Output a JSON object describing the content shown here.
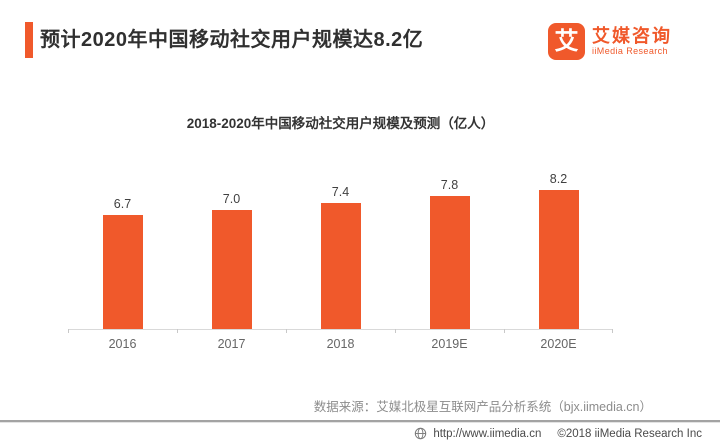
{
  "page": {
    "title": "预计2020年中国移动社交用户规模达8.2亿"
  },
  "logo": {
    "icon_char": "艾",
    "name_zh": "艾媒咨询",
    "name_en": "iiMedia Research"
  },
  "chart_data": {
    "type": "bar",
    "title": "2018-2020年中国移动社交用户规模及预测（亿人）",
    "categories": [
      "2016",
      "2017",
      "2018",
      "2019E",
      "2020E"
    ],
    "values": [
      6.7,
      7.0,
      7.4,
      7.8,
      8.2
    ],
    "value_labels": [
      "6.7",
      "7.0",
      "7.4",
      "7.8",
      "8.2"
    ],
    "xlabel": "",
    "ylabel": "",
    "ylim": [
      0,
      10
    ],
    "grid": false,
    "legend": "none",
    "bar_color": "#F0592B"
  },
  "source_note": "数据来源：艾媒北极星互联网产品分析系统（bjx.iimedia.cn）",
  "footer": {
    "website": "http://www.iimedia.cn",
    "copyright": "©2018  iiMedia Research Inc"
  },
  "colors": {
    "accent": "#F0592B",
    "title_text": "#303030",
    "axis_label": "#666666",
    "source_text": "#8C8C8C",
    "footer_text": "#4A4A4A"
  }
}
